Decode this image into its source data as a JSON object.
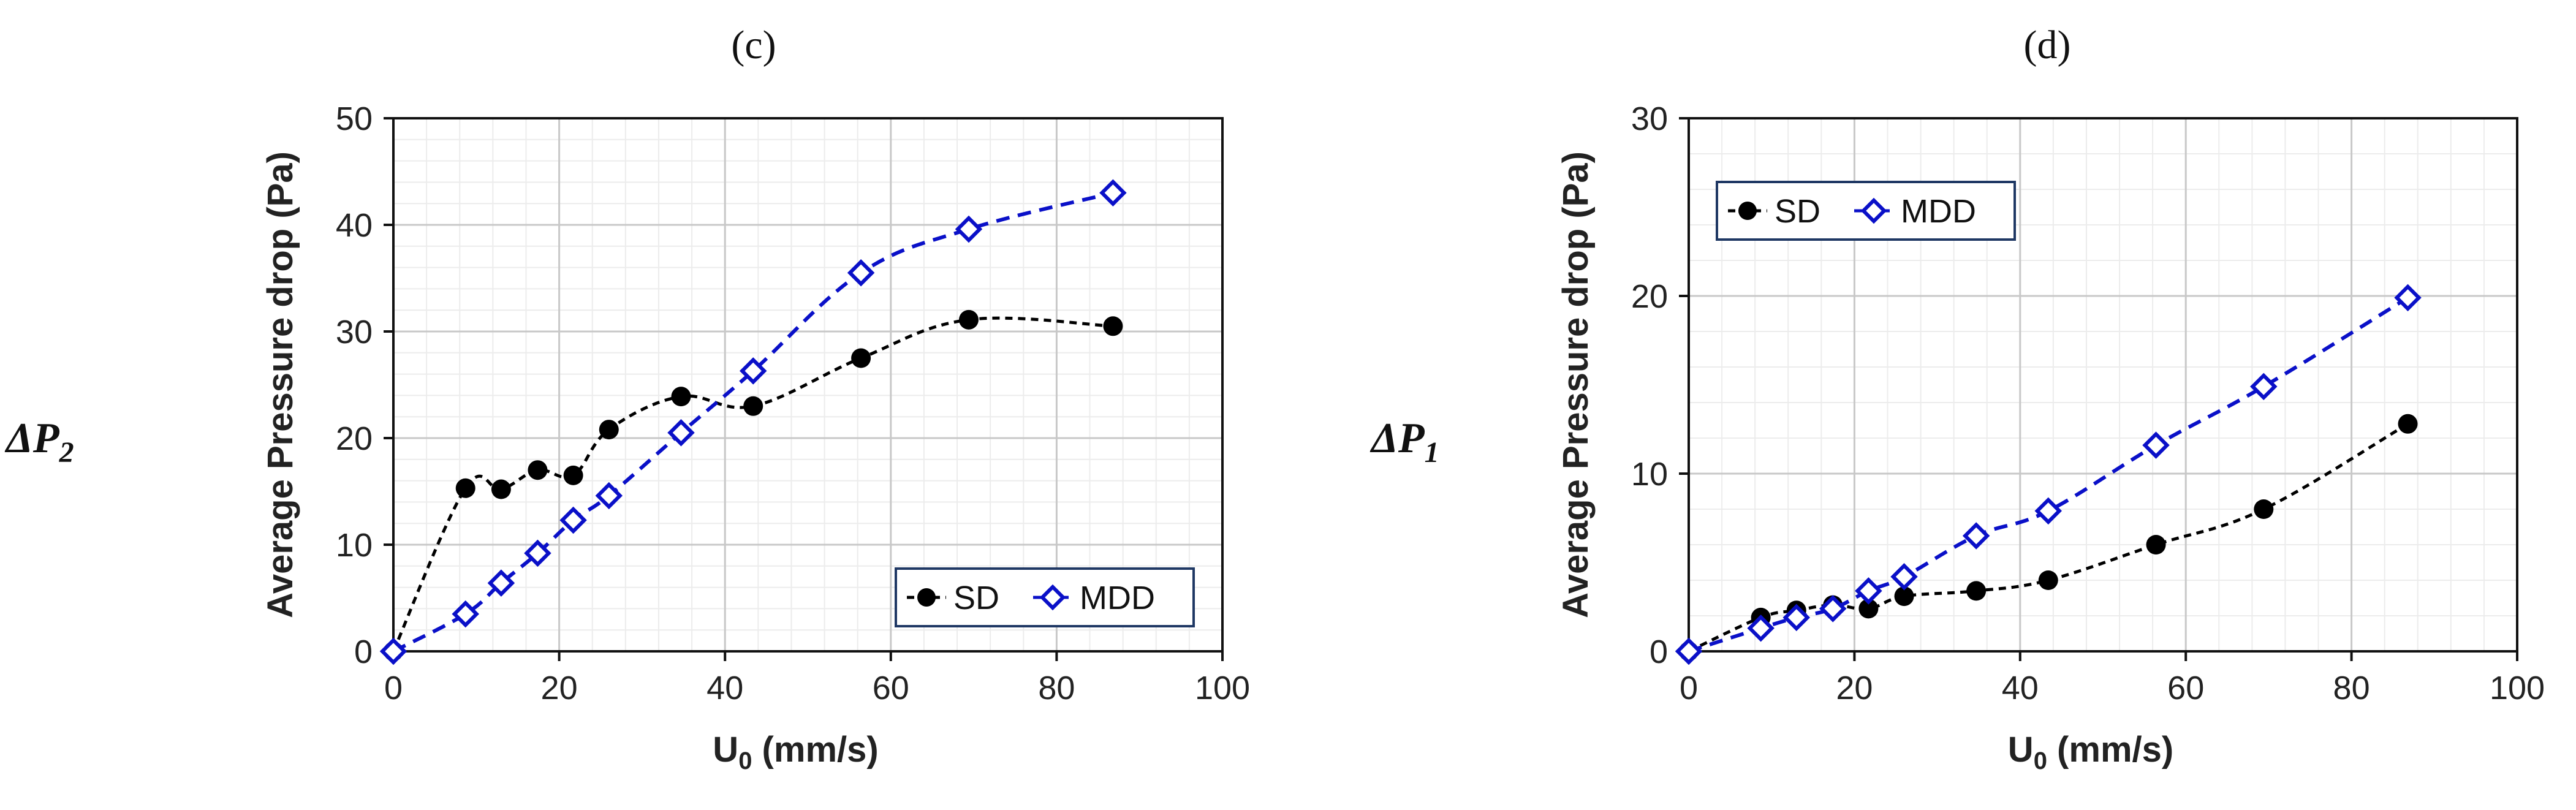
{
  "chart_data": [
    {
      "type": "line",
      "panel": "(c)",
      "row_label": {
        "main": "ΔP",
        "sub": "2"
      },
      "xlabel": {
        "main": "U",
        "sub": "0",
        "rest": " (mm/s)"
      },
      "ylabel": "Average Pressure drop (Pa)",
      "xlim": [
        0,
        100
      ],
      "ylim": [
        0,
        50
      ],
      "xticks": [
        0,
        20,
        40,
        60,
        80,
        100
      ],
      "yticks": [
        0,
        10,
        20,
        30,
        40,
        50
      ],
      "legend": "bottom-right",
      "series": [
        {
          "name": "SD",
          "color": "#000000",
          "marker": "circle",
          "x": [
            0,
            8.7,
            13,
            17.4,
            21.7,
            26,
            34.7,
            43.4,
            56.4,
            69.4,
            86.8
          ],
          "y": [
            0,
            15.3,
            15.2,
            17,
            16.5,
            20.8,
            23.9,
            23,
            27.5,
            31.1,
            30.5
          ]
        },
        {
          "name": "MDD",
          "color": "#0a10c8",
          "marker": "diamond",
          "x": [
            0,
            8.7,
            13,
            17.4,
            21.7,
            26,
            34.7,
            43.4,
            56.4,
            69.4,
            86.8
          ],
          "y": [
            0,
            3.5,
            6.4,
            9.2,
            12.3,
            14.6,
            20.5,
            26.3,
            35.5,
            39.6,
            43
          ]
        }
      ]
    },
    {
      "type": "line",
      "panel": "(d)",
      "row_label": {
        "main": "ΔP",
        "sub": "1"
      },
      "xlabel": {
        "main": "U",
        "sub": "0",
        "rest": " (mm/s)"
      },
      "ylabel": "Average Pressure drop (Pa)",
      "xlim": [
        0,
        100
      ],
      "ylim": [
        0,
        30
      ],
      "xticks": [
        0,
        20,
        40,
        60,
        80,
        100
      ],
      "yticks": [
        0,
        10,
        20,
        30
      ],
      "legend": "top-left",
      "series": [
        {
          "name": "SD",
          "color": "#000000",
          "marker": "circle",
          "x": [
            0,
            8.7,
            13,
            17.4,
            21.7,
            26,
            34.7,
            43.4,
            56.4,
            69.4,
            86.8
          ],
          "y": [
            0,
            1.9,
            2.3,
            2.6,
            2.4,
            3.1,
            3.4,
            4,
            6,
            8,
            12.8
          ]
        },
        {
          "name": "MDD",
          "color": "#0a10c8",
          "marker": "diamond",
          "x": [
            0,
            8.7,
            13,
            17.4,
            21.7,
            26,
            34.7,
            43.4,
            56.4,
            69.4,
            86.8
          ],
          "y": [
            0,
            1.3,
            1.9,
            2.4,
            3.4,
            4.2,
            6.5,
            7.9,
            11.6,
            14.9,
            19.9
          ]
        }
      ]
    }
  ]
}
